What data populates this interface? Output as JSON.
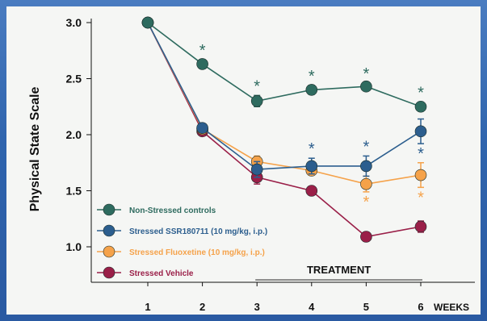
{
  "chart_data": {
    "type": "line",
    "ylabel": "Physical State Scale",
    "xlabel": "WEEKS",
    "x": [
      1,
      2,
      3,
      4,
      5,
      6
    ],
    "xticks": [
      "1",
      "2",
      "3",
      "4",
      "5",
      "6"
    ],
    "yticks": [
      "3.0",
      "2.5",
      "2.0",
      "1.5",
      "1.0"
    ],
    "ylim": [
      0.75,
      3.05
    ],
    "treatment_label": "TREATMENT",
    "treatment_range": [
      3,
      6
    ],
    "legend_position": "bottom-left",
    "star_symbol": "*",
    "series": [
      {
        "name": "Non-Stressed controls",
        "color": "#2e6b5f",
        "values": [
          3.0,
          2.63,
          2.3,
          2.4,
          2.43,
          2.25
        ],
        "errors": [
          0.0,
          0.04,
          0.05,
          0.04,
          0.03,
          0.04
        ],
        "stars_above": [
          false,
          true,
          true,
          true,
          true,
          true
        ],
        "stars_below": [
          false,
          false,
          false,
          false,
          false,
          false
        ]
      },
      {
        "name": "Stressed SSR180711 (10 mg/kg, i.p.)",
        "color": "#2c5e8e",
        "values": [
          3.0,
          2.06,
          1.69,
          1.72,
          1.72,
          2.03
        ],
        "errors": [
          0.0,
          0.03,
          0.07,
          0.07,
          0.09,
          0.11
        ],
        "stars_above": [
          false,
          false,
          false,
          true,
          true,
          false
        ],
        "stars_below": [
          false,
          false,
          false,
          false,
          false,
          true
        ]
      },
      {
        "name": "Stressed Fluoxetine (10 mg/kg, i.p.)",
        "color": "#f5a24a",
        "values": [
          3.0,
          2.05,
          1.76,
          1.68,
          1.56,
          1.64
        ],
        "errors": [
          0.0,
          0.03,
          0.05,
          0.04,
          0.07,
          0.11
        ],
        "stars_above": [
          false,
          false,
          false,
          false,
          false,
          false
        ],
        "stars_below": [
          false,
          false,
          false,
          false,
          true,
          true
        ]
      },
      {
        "name": "Stressed Vehicle",
        "color": "#9a1f48",
        "values": [
          3.0,
          2.03,
          1.62,
          1.5,
          1.09,
          1.18
        ],
        "errors": [
          0.0,
          0.03,
          0.06,
          0.03,
          0.04,
          0.05
        ],
        "stars_above": [
          false,
          false,
          false,
          false,
          false,
          false
        ],
        "stars_below": [
          false,
          false,
          false,
          false,
          false,
          false
        ]
      }
    ]
  }
}
